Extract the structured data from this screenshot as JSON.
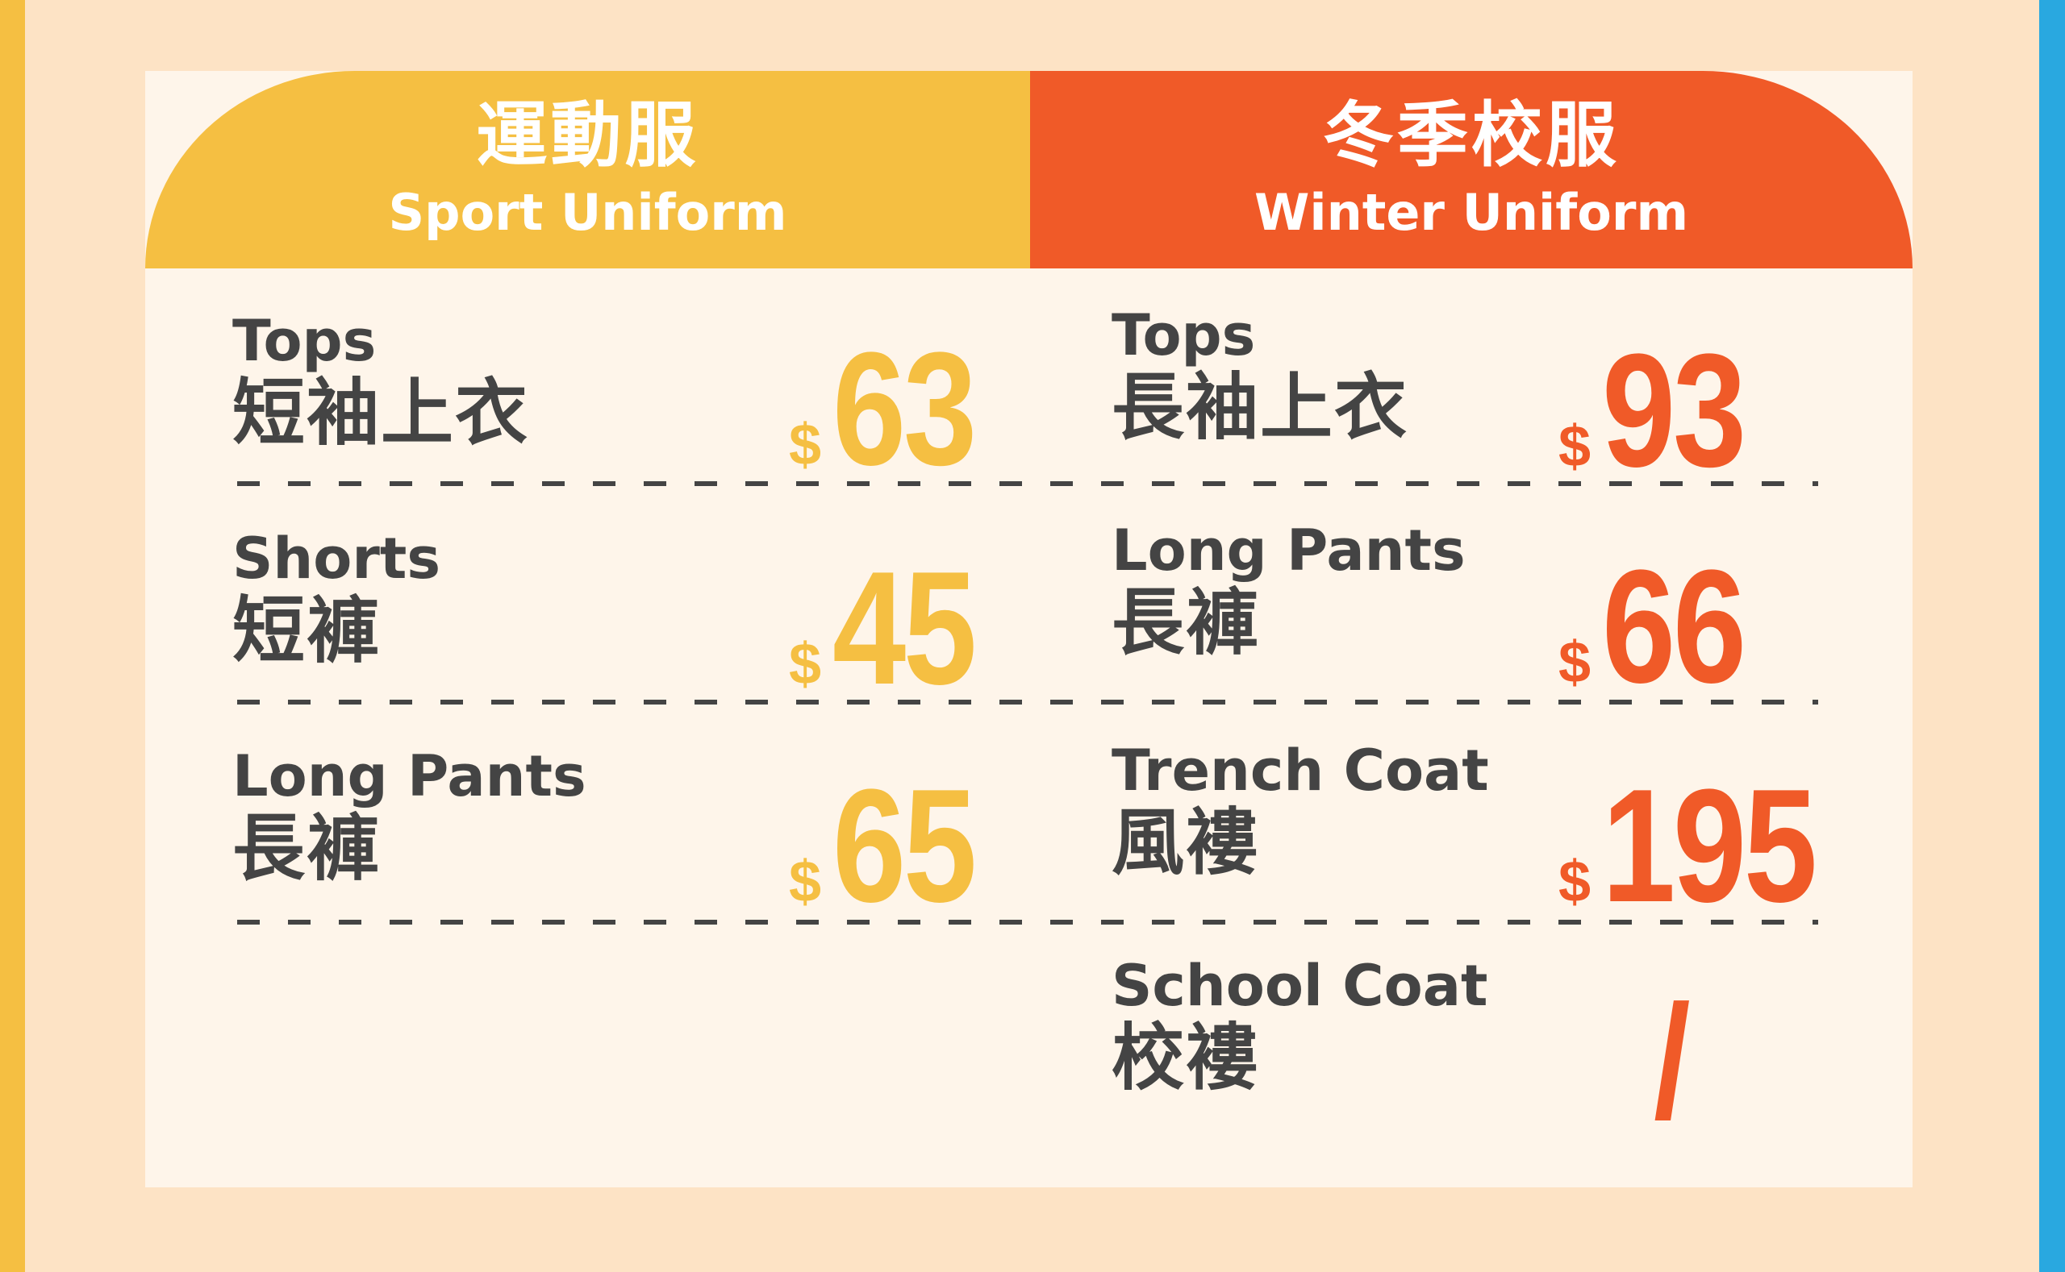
{
  "colors": {
    "sport": "#f5bf42",
    "winter": "#f05a28",
    "text": "#444444",
    "background": "#fde3c5",
    "card": "#fef5ea",
    "accent_right": "#29a8e0"
  },
  "sport": {
    "title_zh": "運動服",
    "title_en": "Sport Uniform",
    "items": [
      {
        "en": "Tops",
        "zh": "短袖上衣",
        "currency": "$",
        "price": "63"
      },
      {
        "en": "Shorts",
        "zh": "短褲",
        "currency": "$",
        "price": "45"
      },
      {
        "en": "Long Pants",
        "zh": "長褲",
        "currency": "$",
        "price": "65"
      }
    ]
  },
  "winter": {
    "title_zh": "冬季校服",
    "title_en": "Winter Uniform",
    "items": [
      {
        "en": "Tops",
        "zh": "長袖上衣",
        "currency": "$",
        "price": "93"
      },
      {
        "en": "Long Pants",
        "zh": "長褲",
        "currency": "$",
        "price": "66"
      },
      {
        "en": "Trench Coat",
        "zh": "風褸",
        "currency": "$",
        "price": "195"
      },
      {
        "en": "School Coat",
        "zh": "校褸",
        "price": "/"
      }
    ]
  }
}
